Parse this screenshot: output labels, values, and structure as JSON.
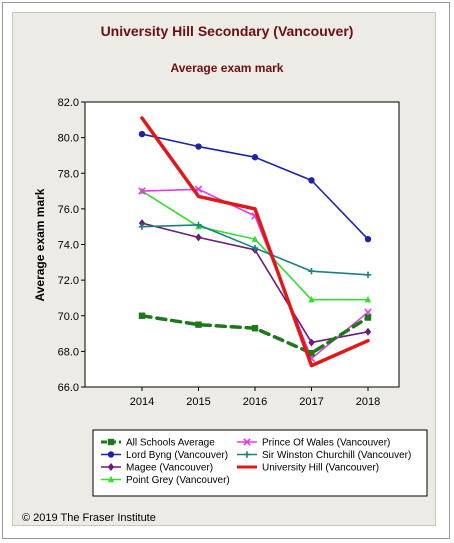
{
  "chart_data": {
    "type": "line",
    "title": "University Hill Secondary (Vancouver)",
    "subtitle": "Average exam mark",
    "ylabel": "Average exam mark",
    "xlabel": "",
    "ylim": [
      66.0,
      82.0
    ],
    "yticks": [
      "66.0",
      "68.0",
      "70.0",
      "72.0",
      "74.0",
      "76.0",
      "78.0",
      "80.0",
      "82.0"
    ],
    "categories": [
      "2014",
      "2015",
      "2016",
      "2017",
      "2018"
    ],
    "grid": false,
    "legend_position": "bottom",
    "series": [
      {
        "name": "All Schools Average",
        "color": "#1a7a1a",
        "dash": true,
        "marker": "square",
        "width": 3.5,
        "values": [
          70.0,
          69.5,
          69.3,
          67.9,
          69.9
        ]
      },
      {
        "name": "Lord Byng (Vancouver)",
        "color": "#1c24a8",
        "dash": false,
        "marker": "circle",
        "width": 1.6,
        "values": [
          80.2,
          79.5,
          78.9,
          77.6,
          74.3
        ]
      },
      {
        "name": "Magee (Vancouver)",
        "color": "#6a1c7a",
        "dash": false,
        "marker": "diamond",
        "width": 1.6,
        "values": [
          75.2,
          74.4,
          73.7,
          68.5,
          69.1
        ]
      },
      {
        "name": "Point Grey (Vancouver)",
        "color": "#33dd33",
        "dash": false,
        "marker": "triangle",
        "width": 1.6,
        "values": [
          77.0,
          75.0,
          74.3,
          70.9,
          70.9
        ]
      },
      {
        "name": "Prince Of Wales (Vancouver)",
        "color": "#e23ce2",
        "dash": false,
        "marker": "cross",
        "width": 1.6,
        "values": [
          77.0,
          77.1,
          75.6,
          67.6,
          70.2
        ]
      },
      {
        "name": "Sir Winston Churchill (Vancouver)",
        "color": "#1a8080",
        "dash": false,
        "marker": "plus",
        "width": 1.6,
        "values": [
          75.0,
          75.1,
          73.8,
          72.5,
          72.3
        ]
      },
      {
        "name": "University Hill (Vancouver)",
        "color": "#e01818",
        "dash": false,
        "marker": "none",
        "width": 3.5,
        "values": [
          81.1,
          76.7,
          76.0,
          67.2,
          68.6
        ]
      }
    ]
  },
  "footer": {
    "copyright": "© 2019 The Fraser Institute"
  }
}
